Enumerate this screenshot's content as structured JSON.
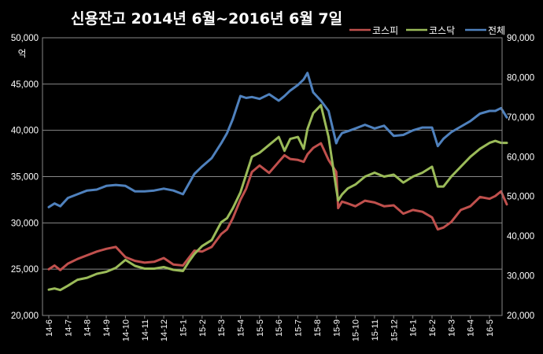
{
  "chart_data": {
    "type": "line",
    "title": "신용잔고  2014년 6월~2016년  6월 7일",
    "ylabel_unit": "억",
    "left_axis": {
      "ylim": [
        20000,
        50000
      ],
      "ticks": [
        "20,000",
        "25,000",
        "30,000",
        "35,000",
        "40,000",
        "45,000",
        "50,000"
      ]
    },
    "right_axis": {
      "ylim": [
        20000,
        90000
      ],
      "ticks": [
        "20,000",
        "30,000",
        "40,000",
        "50,000",
        "60,000",
        "70,000",
        "80,000",
        "90,000"
      ]
    },
    "grid": true,
    "legend_position": "top-right",
    "x_tick_labels": [
      "14-6",
      "14-7",
      "14-8",
      "14-9",
      "14-10",
      "14-11",
      "14-12",
      "15-1",
      "15-2",
      "15-3",
      "15-4",
      "15-5",
      "15-6",
      "15-7",
      "15-8",
      "15-9",
      "15-10",
      "15-11",
      "15-12",
      "16-1",
      "16-2",
      "16-3",
      "16-4",
      "16-5"
    ],
    "series": [
      {
        "name": "코스피",
        "axis": "left",
        "color": "#c0504d",
        "x": [
          0,
          0.3,
          0.6,
          1.0,
          1.5,
          2.0,
          2.5,
          3.0,
          3.5,
          4.0,
          4.5,
          5.0,
          5.5,
          6.0,
          6.5,
          7.0,
          7.3,
          7.6,
          8.0,
          8.5,
          9.0,
          9.3,
          9.6,
          10.0,
          10.3,
          10.6,
          11.0,
          11.5,
          12.0,
          12.3,
          12.6,
          13.0,
          13.3,
          13.5,
          13.8,
          14.2,
          14.6,
          15.0,
          15.1,
          15.3,
          15.6,
          16.0,
          16.5,
          17.0,
          17.5,
          18.0,
          18.5,
          19.0,
          19.5,
          20.0,
          20.3,
          20.6,
          21.0,
          21.5,
          22.0,
          22.5,
          23.0,
          23.3,
          23.6,
          23.9
        ],
        "values": [
          25000,
          25400,
          24900,
          25600,
          26100,
          26500,
          26900,
          27200,
          27400,
          26300,
          25900,
          25700,
          25800,
          26200,
          25500,
          25400,
          26200,
          27000,
          26900,
          27400,
          28800,
          29300,
          30500,
          32500,
          33700,
          35500,
          36200,
          35400,
          36600,
          37300,
          36900,
          36800,
          36600,
          37400,
          38100,
          38600,
          36800,
          35500,
          31600,
          32300,
          32100,
          31800,
          32400,
          32200,
          31800,
          31900,
          31000,
          31400,
          31200,
          30600,
          29300,
          29500,
          30100,
          31400,
          31800,
          32800,
          32600,
          32900,
          33400,
          32000
        ]
      },
      {
        "name": "코스닥",
        "axis": "right",
        "color": "#9bbb59",
        "x": [
          0,
          0.3,
          0.6,
          1.0,
          1.5,
          2.0,
          2.5,
          3.0,
          3.5,
          4.0,
          4.5,
          5.0,
          5.5,
          6.0,
          6.5,
          7.0,
          7.3,
          7.6,
          8.0,
          8.5,
          9.0,
          9.3,
          9.6,
          10.0,
          10.3,
          10.6,
          11.0,
          11.5,
          12.0,
          12.3,
          12.6,
          13.0,
          13.3,
          13.5,
          13.8,
          14.2,
          14.6,
          15.0,
          15.1,
          15.3,
          15.6,
          16.0,
          16.5,
          17.0,
          17.5,
          18.0,
          18.5,
          19.0,
          19.5,
          20.0,
          20.3,
          20.6,
          21.0,
          21.5,
          22.0,
          22.5,
          23.0,
          23.3,
          23.6,
          23.9
        ],
        "values": [
          26500,
          26800,
          26400,
          27500,
          29000,
          29500,
          30500,
          31000,
          32000,
          34000,
          32500,
          31800,
          31800,
          32200,
          31500,
          31200,
          33500,
          35500,
          37500,
          39000,
          43500,
          44500,
          47000,
          51000,
          55500,
          60000,
          61000,
          63000,
          65000,
          61500,
          64500,
          65000,
          62000,
          67000,
          71000,
          73000,
          65000,
          52000,
          49000,
          50500,
          52000,
          53000,
          55000,
          56000,
          55000,
          55500,
          53500,
          55000,
          56000,
          57500,
          52500,
          52500,
          55000,
          57500,
          60000,
          62000,
          63500,
          64000,
          63500,
          63500
        ]
      },
      {
        "name": "전체",
        "axis": "left",
        "color": "#4f81bd",
        "x": [
          0,
          0.3,
          0.6,
          1.0,
          1.5,
          2.0,
          2.5,
          3.0,
          3.5,
          4.0,
          4.5,
          5.0,
          5.5,
          6.0,
          6.5,
          7.0,
          7.3,
          7.6,
          8.0,
          8.5,
          9.0,
          9.3,
          9.6,
          10.0,
          10.3,
          10.6,
          11.0,
          11.5,
          12.0,
          12.3,
          12.6,
          13.0,
          13.3,
          13.5,
          13.8,
          14.2,
          14.6,
          15.0,
          15.1,
          15.3,
          15.6,
          16.0,
          16.5,
          17.0,
          17.5,
          18.0,
          18.5,
          19.0,
          19.5,
          20.0,
          20.3,
          20.6,
          21.0,
          21.5,
          22.0,
          22.5,
          23.0,
          23.3,
          23.6,
          23.9
        ],
        "values": [
          31700,
          32100,
          31800,
          32700,
          33100,
          33500,
          33600,
          34000,
          34100,
          34000,
          33400,
          33400,
          33500,
          33700,
          33500,
          33100,
          34200,
          35300,
          36100,
          37000,
          38600,
          39700,
          41200,
          43700,
          43500,
          43600,
          43400,
          43900,
          43200,
          43700,
          44300,
          44900,
          45500,
          46200,
          44100,
          43200,
          42100,
          38600,
          39100,
          39700,
          39900,
          40200,
          40600,
          40200,
          40500,
          39400,
          39500,
          40000,
          40300,
          40300,
          38300,
          39100,
          39800,
          40400,
          41000,
          41800,
          42100,
          42100,
          42400,
          41400
        ]
      }
    ]
  }
}
